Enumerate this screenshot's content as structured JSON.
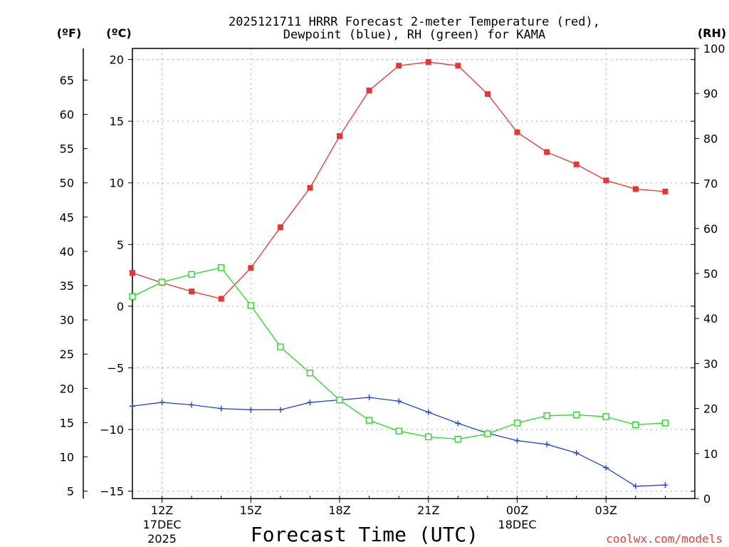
{
  "chart_data": {
    "type": "line",
    "title": "2025121711 HRRR Forecast 2-meter Temperature (red),",
    "subtitle": "Dewpoint (blue), RH (green) for KAMA",
    "units": {
      "fahrenheit": "(ºF)",
      "celsius": "(ºC)",
      "rh": "(RH)"
    },
    "xlabel": "Forecast Time (UTC)",
    "credit": "coolwx.com/models",
    "grid": true,
    "x_hours": [
      11,
      12,
      13,
      14,
      15,
      16,
      17,
      18,
      19,
      20,
      21,
      22,
      23,
      24,
      25,
      26,
      27,
      28,
      29,
      30
    ],
    "x_ticks": [
      {
        "hour": 12,
        "lines": [
          "12Z",
          "17DEC",
          "2025"
        ]
      },
      {
        "hour": 15,
        "lines": [
          "15Z"
        ]
      },
      {
        "hour": 18,
        "lines": [
          "18Z"
        ]
      },
      {
        "hour": 21,
        "lines": [
          "21Z"
        ]
      },
      {
        "hour": 24,
        "lines": [
          "00Z",
          "18DEC"
        ]
      },
      {
        "hour": 27,
        "lines": [
          "03Z"
        ]
      }
    ],
    "xlim": [
      11,
      30
    ],
    "ylim_celsius": [
      -15.6,
      20.9
    ],
    "ylim_rh": [
      0,
      100
    ],
    "celsius_ticks": [
      "20",
      "15",
      "10",
      "5",
      "0",
      "−5",
      "−10",
      "−15"
    ],
    "celsius_tick_values": [
      20,
      15,
      10,
      5,
      0,
      -5,
      -10,
      -15
    ],
    "fahrenheit_ticks": [
      "65",
      "60",
      "55",
      "50",
      "45",
      "40",
      "35",
      "30",
      "25",
      "20",
      "15",
      "10",
      "5"
    ],
    "fahrenheit_tick_values": [
      65,
      60,
      55,
      50,
      45,
      40,
      35,
      30,
      25,
      20,
      15,
      10,
      5
    ],
    "rh_ticks": [
      "100",
      "90",
      "80",
      "70",
      "60",
      "50",
      "40",
      "30",
      "20",
      "10",
      "0"
    ],
    "rh_tick_values": [
      100,
      90,
      80,
      70,
      60,
      50,
      40,
      30,
      20,
      10,
      0
    ],
    "series": [
      {
        "name": "Temperature",
        "unit": "C",
        "color": "#ee3333",
        "marker": "filled-square",
        "values": [
          2.7,
          1.9,
          1.2,
          0.6,
          3.1,
          6.4,
          9.6,
          13.8,
          17.5,
          19.5,
          19.8,
          19.5,
          17.2,
          14.1,
          12.5,
          11.5,
          10.2,
          9.5,
          9.3,
          null
        ]
      },
      {
        "name": "Dewpoint",
        "unit": "C",
        "color": "#2244dd",
        "marker": "plus",
        "values": [
          -8.1,
          -7.8,
          -8.0,
          -8.3,
          -8.4,
          -8.4,
          -7.8,
          -7.6,
          -7.4,
          -7.7,
          -8.6,
          -9.5,
          -10.3,
          -10.9,
          -11.2,
          -11.9,
          -13.1,
          -14.6,
          -14.5,
          null
        ]
      },
      {
        "name": "RH",
        "unit": "%",
        "color": "#22dd22",
        "marker": "open-square",
        "values": [
          44.9,
          48.1,
          49.8,
          51.3,
          42.9,
          33.7,
          27.9,
          21.9,
          17.4,
          15.0,
          13.7,
          13.2,
          14.4,
          16.8,
          18.4,
          18.6,
          18.2,
          16.4,
          16.8,
          null
        ]
      }
    ]
  }
}
